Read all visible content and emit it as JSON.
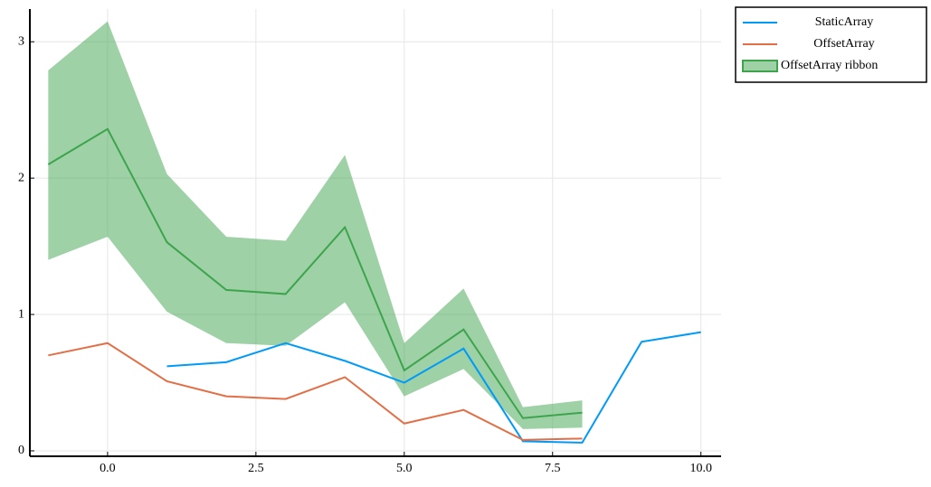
{
  "chart_data": {
    "type": "line",
    "series": [
      {
        "name": "StaticArray",
        "color": "#009af9",
        "x": [
          1,
          2,
          3,
          4,
          5,
          6,
          7,
          8,
          9,
          10
        ],
        "values": [
          0.62,
          0.65,
          0.79,
          0.66,
          0.5,
          0.75,
          0.07,
          0.06,
          0.8,
          0.87
        ]
      },
      {
        "name": "OffsetArray",
        "color": "#e26f46",
        "x": [
          -1,
          0,
          1,
          2,
          3,
          4,
          5,
          6,
          7,
          8
        ],
        "values": [
          0.7,
          0.79,
          0.51,
          0.4,
          0.38,
          0.54,
          0.2,
          0.3,
          0.08,
          0.09
        ]
      },
      {
        "name": "OffsetArray ribbon",
        "color": "#3da44d",
        "x": [
          -1,
          0,
          1,
          2,
          3,
          4,
          5,
          6,
          7,
          8
        ],
        "values": [
          2.1,
          2.36,
          1.53,
          1.18,
          1.15,
          1.64,
          0.59,
          0.89,
          0.24,
          0.28
        ],
        "lower": [
          1.4,
          1.57,
          1.02,
          0.79,
          0.77,
          1.09,
          0.4,
          0.6,
          0.16,
          0.17
        ],
        "upper": [
          2.79,
          3.15,
          2.03,
          1.57,
          1.54,
          2.17,
          0.79,
          1.19,
          0.32,
          0.37
        ]
      }
    ],
    "xlim": [
      -1.31,
      10.34
    ],
    "ylim": [
      -0.04,
      3.24
    ],
    "xticks": [
      {
        "value": 0,
        "label": "0.0"
      },
      2.5,
      {
        "value": 5,
        "label": "5.0"
      },
      7.5,
      {
        "value": 10,
        "label": "10.0"
      }
    ],
    "yticks": [
      0,
      1,
      2,
      3
    ],
    "grid": true,
    "legend": "outer-top-right"
  }
}
